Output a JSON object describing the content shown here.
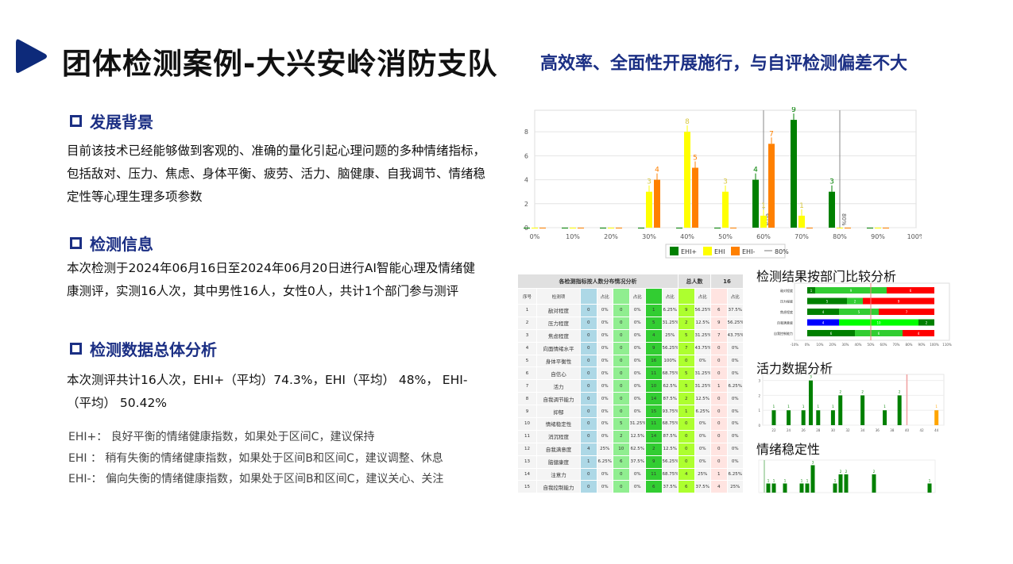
{
  "header": {
    "title": "团体检测案例-大兴安岭消防支队",
    "subtitle": "高效率、全面性开展施行，与自评检测偏差不大",
    "accent": "#0d2a7a"
  },
  "sections": [
    {
      "heading": "发展背景",
      "text": "目前该技术已经能够做到客观的、准确的量化引起心理问题的多种情绪指标，包括敌对、压力、焦虑、身体平衡、疲劳、活力、脑健康、自我调节、情绪稳定性等心理生理多项参数"
    },
    {
      "heading": "检测信息",
      "text": "本次检测于2024年06月16日至2024年06月20日进行AI智能心理及情绪健康测评，实测16人次，其中男性16人，女性0人，共计1个部门参与测评"
    },
    {
      "heading": "检测数据总体分析",
      "text": "本次测评共计16人次，EHI+（平均）74.3%，EHI（平均） 48%， EHI-（平均） 50.42%"
    }
  ],
  "notes": [
    "EHI+： 良好平衡的情绪健康指数，如果处于区间C，建议保持",
    "EHI  ： 稍有失衡的情绪健康指数，如果处于区间B和区间C，建议调整、休息",
    "EHI-： 偏向失衡的情绪健康指数，如果处于区间B和区间C，建议关心、关注"
  ],
  "chart_data": [
    {
      "type": "bar",
      "categories": [
        "0%",
        "10%",
        "20%",
        "30%",
        "40%",
        "50%",
        "60%",
        "70%",
        "80%",
        "90%"
      ],
      "x_ticks": [
        "0%",
        "10%",
        "20%",
        "30%",
        "40%",
        "50%",
        "60%",
        "70%",
        "80%",
        "90%",
        "100%"
      ],
      "y_ticks": [
        0,
        2,
        4,
        6,
        8
      ],
      "ylim": [
        0,
        9.8
      ],
      "grid": true,
      "legend": "bottom",
      "series": [
        {
          "name": "EHI+",
          "color": "#008000",
          "values": [
            0,
            0,
            0,
            0,
            0,
            0,
            4,
            9,
            3,
            0
          ]
        },
        {
          "name": "EHI",
          "color": "#ffff00",
          "values": [
            0,
            0,
            0,
            3,
            8,
            3,
            1,
            1,
            0,
            0
          ]
        },
        {
          "name": "EHI-",
          "color": "#ff8000",
          "values": [
            0,
            0,
            0,
            4,
            5,
            0,
            7,
            0,
            0,
            0
          ]
        }
      ],
      "reference_lines": [
        {
          "x": "60%",
          "label": "60%"
        },
        {
          "x": "80%",
          "label": "80%"
        }
      ],
      "legend_line_label": "80%"
    },
    {
      "type": "bar",
      "title": "检测结果按部门比较分析",
      "orientation": "horizontal-stacked-percent",
      "rows": [
        {
          "label": "敌对程度",
          "segments": [
            {
              "v": 1,
              "c": "#008000"
            },
            {
              "v": 9,
              "c": "#32cd32"
            },
            {
              "v": 6,
              "c": "#ff0000"
            }
          ]
        },
        {
          "label": "压力程度",
          "segments": [
            {
              "v": 5,
              "c": "#008000"
            },
            {
              "v": 2,
              "c": "#32cd32"
            },
            {
              "v": 9,
              "c": "#ff0000"
            }
          ]
        },
        {
          "label": "焦虑程度",
          "segments": [
            {
              "v": 4,
              "c": "#008000"
            },
            {
              "v": 5,
              "c": "#32cd32"
            },
            {
              "v": 7,
              "c": "#ff0000"
            }
          ]
        },
        {
          "label": "自我满意度",
          "segments": [
            {
              "v": 4,
              "c": "#0000ff"
            },
            {
              "v": 10,
              "c": "#00ff00"
            },
            {
              "v": 2,
              "c": "#008000"
            }
          ]
        },
        {
          "label": "自我控制能力",
          "segments": [
            {
              "v": 6,
              "c": "#008000"
            },
            {
              "v": 6,
              "c": "#32cd32"
            },
            {
              "v": 4,
              "c": "#ff0000"
            }
          ]
        }
      ],
      "x_ticks": [
        "-10%",
        "0%",
        "10%",
        "20%",
        "30%",
        "40%",
        "50%",
        "60%",
        "70%",
        "80%",
        "90%",
        "100%",
        "110%"
      ],
      "reference_line": "50%"
    },
    {
      "type": "bar",
      "title": "活力数据分析",
      "x": [
        22,
        24,
        26,
        27,
        28,
        30,
        31,
        34,
        37,
        39,
        44
      ],
      "values": [
        1,
        1,
        1,
        3,
        1,
        1,
        2,
        2,
        1,
        2,
        1
      ],
      "colors": [
        "#008000",
        "#008000",
        "#008000",
        "#008000",
        "#008000",
        "#008000",
        "#008000",
        "#008000",
        "#008000",
        "#008000",
        "#ffa500"
      ],
      "x_ticks": [
        22,
        24,
        26,
        28,
        30,
        32,
        34,
        36,
        38,
        40,
        42,
        44
      ],
      "y_ticks": [
        0,
        1,
        2,
        3
      ],
      "xlim": [
        20.5,
        45
      ],
      "ylim": [
        0,
        3.3
      ],
      "reference_line": 40
    },
    {
      "type": "bar",
      "title": "情绪稳定性",
      "values": [
        1,
        1,
        1,
        1,
        1,
        3,
        1,
        2,
        2,
        2,
        1
      ],
      "positions": [
        1,
        2,
        4,
        7,
        8,
        9,
        13,
        14,
        15,
        20,
        30
      ],
      "ylim": [
        0,
        3.3
      ]
    }
  ],
  "table": {
    "title": "各检测指标按人数分布情况分析",
    "total_label": "总人数",
    "total": "16",
    "col_headers": [
      "序号",
      "检测项"
    ],
    "share_label": "占比",
    "rows": [
      [
        "1",
        "敌对程度",
        "0",
        "0%",
        "0",
        "0%",
        "1",
        "6.25%",
        "9",
        "56.25%",
        "6",
        "37.5%"
      ],
      [
        "2",
        "压力程度",
        "0",
        "0%",
        "0",
        "0%",
        "5",
        "31.25%",
        "2",
        "12.5%",
        "9",
        "56.25%"
      ],
      [
        "3",
        "焦虑程度",
        "0",
        "0%",
        "0",
        "0%",
        "4",
        "25%",
        "5",
        "31.25%",
        "7",
        "43.75%"
      ],
      [
        "4",
        "向面情绪水平",
        "0",
        "0%",
        "0",
        "0%",
        "9",
        "56.25%",
        "7",
        "43.75%",
        "0",
        "0%"
      ],
      [
        "5",
        "身体平衡性",
        "0",
        "0%",
        "0",
        "0%",
        "16",
        "100%",
        "0",
        "0%",
        "0",
        "0%"
      ],
      [
        "6",
        "自信心",
        "0",
        "0%",
        "0",
        "0%",
        "11",
        "68.75%",
        "5",
        "31.25%",
        "0",
        "0%"
      ],
      [
        "7",
        "活力",
        "0",
        "0%",
        "0",
        "0%",
        "10",
        "62.5%",
        "5",
        "31.25%",
        "1",
        "6.25%"
      ],
      [
        "8",
        "自我调节能力",
        "0",
        "0%",
        "0",
        "0%",
        "14",
        "87.5%",
        "2",
        "12.5%",
        "0",
        "0%"
      ],
      [
        "9",
        "抑郁",
        "0",
        "0%",
        "0",
        "0%",
        "15",
        "93.75%",
        "1",
        "6.25%",
        "0",
        "0%"
      ],
      [
        "10",
        "情绪稳定性",
        "0",
        "0%",
        "5",
        "31.25%",
        "11",
        "68.75%",
        "0",
        "0%",
        "0",
        "0%"
      ],
      [
        "11",
        "消沉程度",
        "0",
        "0%",
        "2",
        "12.5%",
        "14",
        "87.5%",
        "0",
        "0%",
        "0",
        "0%"
      ],
      [
        "12",
        "自我满意度",
        "4",
        "25%",
        "10",
        "62.5%",
        "2",
        "12.5%",
        "0",
        "0%",
        "0",
        "0%"
      ],
      [
        "13",
        "脑健康度",
        "1",
        "6.25%",
        "6",
        "37.5%",
        "9",
        "56.25%",
        "0",
        "0%",
        "0",
        "0%"
      ],
      [
        "14",
        "注意力",
        "0",
        "0%",
        "0",
        "0%",
        "11",
        "68.75%",
        "4",
        "25%",
        "1",
        "6.25%"
      ],
      [
        "15",
        "自我控制能力",
        "0",
        "0%",
        "0",
        "0%",
        "6",
        "37.5%",
        "6",
        "37.5%",
        "4",
        "25%"
      ]
    ]
  }
}
